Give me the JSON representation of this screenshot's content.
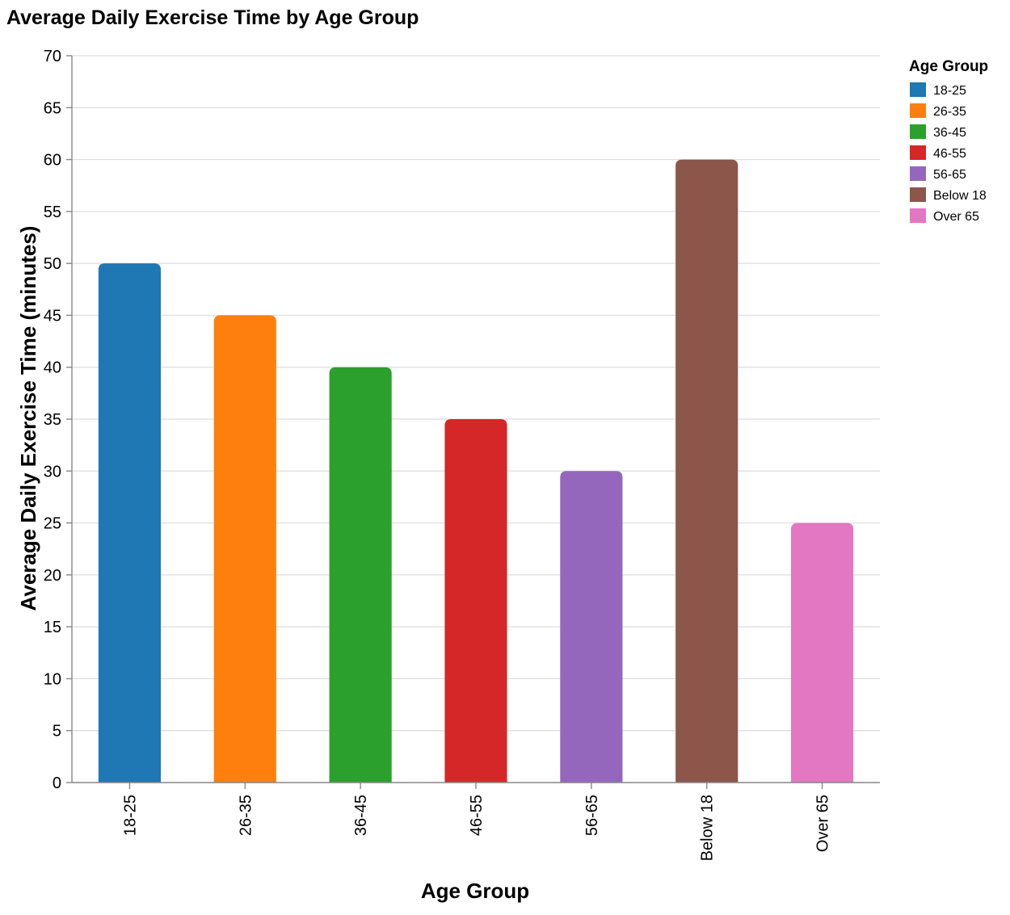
{
  "chart_data": {
    "type": "bar",
    "title": "Average Daily Exercise Time by Age Group",
    "xlabel": "Age Group",
    "ylabel": "Average Daily Exercise Time (minutes)",
    "categories": [
      "18-25",
      "26-35",
      "36-45",
      "46-55",
      "56-65",
      "Below 18",
      "Over 65"
    ],
    "values": [
      50,
      45,
      40,
      35,
      30,
      60,
      25
    ],
    "colors": [
      "#1f77b4",
      "#ff7f0e",
      "#2ca02c",
      "#d62728",
      "#9467bd",
      "#8c564b",
      "#e377c2"
    ],
    "ylim": [
      0,
      70
    ],
    "yticks": [
      0,
      5,
      10,
      15,
      20,
      25,
      30,
      35,
      40,
      45,
      50,
      55,
      60,
      65,
      70
    ],
    "grid": true,
    "legend": {
      "title": "Age Group",
      "placement": "right",
      "entries": [
        "18-25",
        "26-35",
        "36-45",
        "46-55",
        "56-65",
        "Below 18",
        "Over 65"
      ]
    }
  }
}
